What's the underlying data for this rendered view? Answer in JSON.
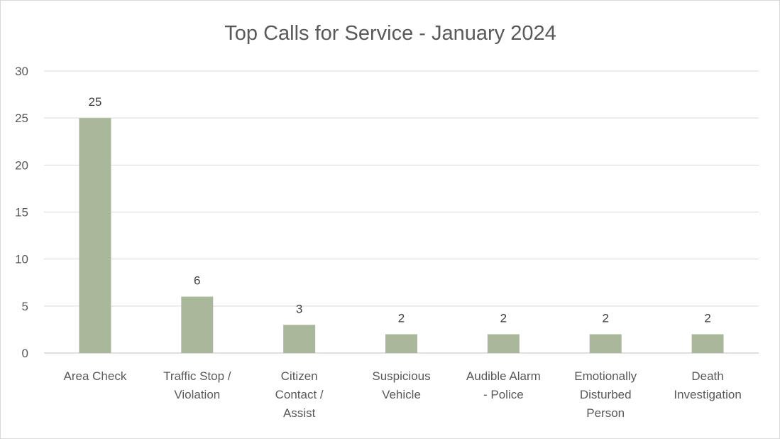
{
  "chart_data": {
    "type": "bar",
    "title": "Top Calls for Service - January 2024",
    "categories": [
      "Area Check",
      "Traffic Stop / Violation",
      "Citizen Contact / Assist",
      "Suspicious Vehicle",
      "Audible Alarm - Police",
      "Emotionally Disturbed Person",
      "Death Investigation"
    ],
    "category_lines": [
      [
        "Area Check"
      ],
      [
        "Traffic Stop /",
        "Violation"
      ],
      [
        "Citizen",
        "Contact /",
        "Assist"
      ],
      [
        "Suspicious",
        "Vehicle"
      ],
      [
        "Audible Alarm",
        "- Police"
      ],
      [
        "Emotionally",
        "Disturbed",
        "Person"
      ],
      [
        "Death",
        "Investigation"
      ]
    ],
    "values": [
      25,
      6,
      3,
      2,
      2,
      2,
      2
    ],
    "ylim": [
      0,
      30
    ],
    "yticks": [
      "0",
      "5",
      "10",
      "15",
      "20",
      "25",
      "30"
    ],
    "grid": true,
    "data_labels": true,
    "bar_color": "#a9b89b",
    "xlabel": "",
    "ylabel": ""
  }
}
